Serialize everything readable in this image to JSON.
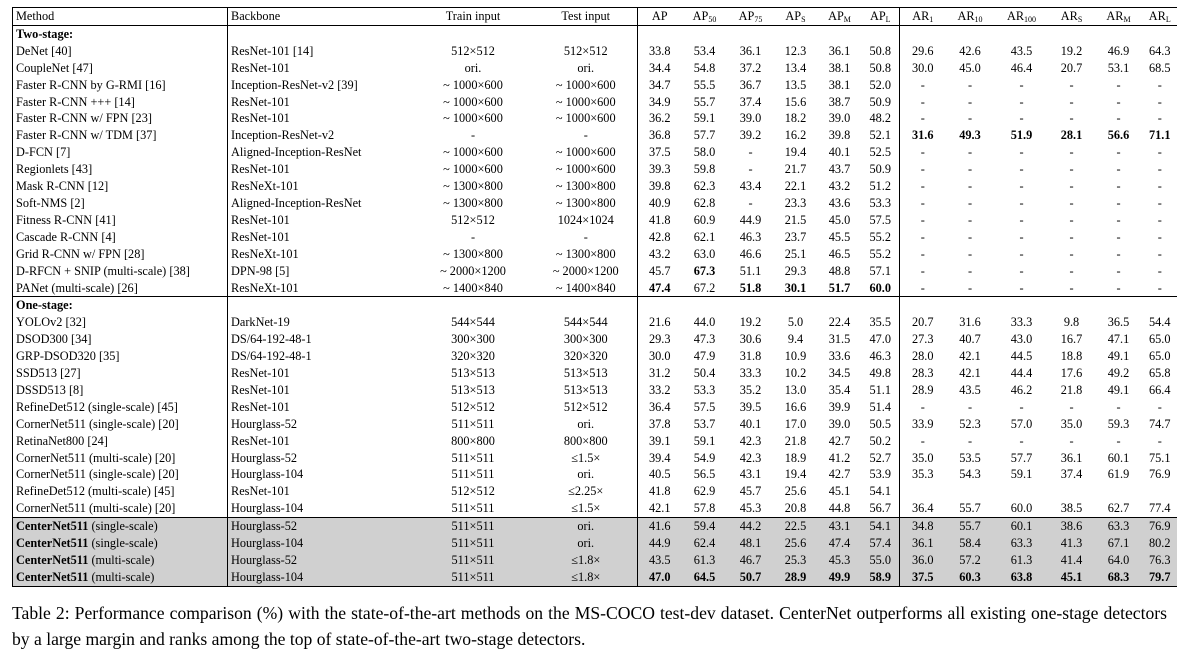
{
  "table": {
    "header": {
      "method": "Method",
      "backbone": "Backbone",
      "train_input": "Train input",
      "test_input": "Test input",
      "metrics": [
        {
          "base": "AP",
          "sub": ""
        },
        {
          "base": "AP",
          "sub": "50"
        },
        {
          "base": "AP",
          "sub": "75"
        },
        {
          "base": "AP",
          "sub": "S"
        },
        {
          "base": "AP",
          "sub": "M"
        },
        {
          "base": "AP",
          "sub": "L"
        },
        {
          "base": "AR",
          "sub": "1"
        },
        {
          "base": "AR",
          "sub": "10"
        },
        {
          "base": "AR",
          "sub": "100"
        },
        {
          "base": "AR",
          "sub": "S"
        },
        {
          "base": "AR",
          "sub": "M"
        },
        {
          "base": "AR",
          "sub": "L"
        }
      ]
    },
    "sections": [
      {
        "title": "Two-stage:",
        "rows": [
          {
            "method": "DeNet [40]",
            "backbone": "ResNet-101 [14]",
            "train": "512×512",
            "test": "512×512",
            "ap": [
              "33.8",
              "53.4",
              "36.1",
              "12.3",
              "36.1",
              "50.8"
            ],
            "ar": [
              "29.6",
              "42.6",
              "43.5",
              "19.2",
              "46.9",
              "64.3"
            ]
          },
          {
            "method": "CoupleNet [47]",
            "backbone": "ResNet-101",
            "train": "ori.",
            "test": "ori.",
            "ap": [
              "34.4",
              "54.8",
              "37.2",
              "13.4",
              "38.1",
              "50.8"
            ],
            "ar": [
              "30.0",
              "45.0",
              "46.4",
              "20.7",
              "53.1",
              "68.5"
            ]
          },
          {
            "method": "Faster R-CNN by G-RMI [16]",
            "backbone": "Inception-ResNet-v2 [39]",
            "train": "~ 1000×600",
            "test": "~ 1000×600",
            "ap": [
              "34.7",
              "55.5",
              "36.7",
              "13.5",
              "38.1",
              "52.0"
            ],
            "ar": [
              "-",
              "-",
              "-",
              "-",
              "-",
              "-"
            ]
          },
          {
            "method": "Faster R-CNN +++ [14]",
            "backbone": "ResNet-101",
            "train": "~ 1000×600",
            "test": "~ 1000×600",
            "ap": [
              "34.9",
              "55.7",
              "37.4",
              "15.6",
              "38.7",
              "50.9"
            ],
            "ar": [
              "-",
              "-",
              "-",
              "-",
              "-",
              "-"
            ]
          },
          {
            "method": "Faster R-CNN w/ FPN [23]",
            "backbone": "ResNet-101",
            "train": "~ 1000×600",
            "test": "~ 1000×600",
            "ap": [
              "36.2",
              "59.1",
              "39.0",
              "18.2",
              "39.0",
              "48.2"
            ],
            "ar": [
              "-",
              "-",
              "-",
              "-",
              "-",
              "-"
            ]
          },
          {
            "method": "Faster R-CNN w/ TDM [37]",
            "backbone": "Inception-ResNet-v2",
            "train": "-",
            "test": "-",
            "ap": [
              "36.8",
              "57.7",
              "39.2",
              "16.2",
              "39.8",
              "52.1"
            ],
            "ar": [
              "31.6",
              "49.3",
              "51.9",
              "28.1",
              "56.6",
              "71.1"
            ],
            "bold_ar": [
              0,
              1,
              2,
              3,
              4,
              5
            ]
          },
          {
            "method": "D-FCN [7]",
            "backbone": "Aligned-Inception-ResNet",
            "train": "~ 1000×600",
            "test": "~ 1000×600",
            "ap": [
              "37.5",
              "58.0",
              "-",
              "19.4",
              "40.1",
              "52.5"
            ],
            "ar": [
              "-",
              "-",
              "-",
              "-",
              "-",
              "-"
            ]
          },
          {
            "method": "Regionlets [43]",
            "backbone": "ResNet-101",
            "train": "~ 1000×600",
            "test": "~ 1000×600",
            "ap": [
              "39.3",
              "59.8",
              "-",
              "21.7",
              "43.7",
              "50.9"
            ],
            "ar": [
              "-",
              "-",
              "-",
              "-",
              "-",
              "-"
            ]
          },
          {
            "method": "Mask R-CNN [12]",
            "backbone": "ResNeXt-101",
            "train": "~ 1300×800",
            "test": "~ 1300×800",
            "ap": [
              "39.8",
              "62.3",
              "43.4",
              "22.1",
              "43.2",
              "51.2"
            ],
            "ar": [
              "-",
              "-",
              "-",
              "-",
              "-",
              "-"
            ]
          },
          {
            "method": "Soft-NMS [2]",
            "backbone": "Aligned-Inception-ResNet",
            "train": "~ 1300×800",
            "test": "~ 1300×800",
            "ap": [
              "40.9",
              "62.8",
              "-",
              "23.3",
              "43.6",
              "53.3"
            ],
            "ar": [
              "-",
              "-",
              "-",
              "-",
              "-",
              "-"
            ]
          },
          {
            "method": "Fitness R-CNN [41]",
            "backbone": "ResNet-101",
            "train": "512×512",
            "test": "1024×1024",
            "ap": [
              "41.8",
              "60.9",
              "44.9",
              "21.5",
              "45.0",
              "57.5"
            ],
            "ar": [
              "-",
              "-",
              "-",
              "-",
              "-",
              "-"
            ]
          },
          {
            "method": "Cascade R-CNN [4]",
            "backbone": "ResNet-101",
            "train": "-",
            "test": "-",
            "ap": [
              "42.8",
              "62.1",
              "46.3",
              "23.7",
              "45.5",
              "55.2"
            ],
            "ar": [
              "-",
              "-",
              "-",
              "-",
              "-",
              "-"
            ]
          },
          {
            "method": "Grid R-CNN w/ FPN [28]",
            "backbone": "ResNeXt-101",
            "train": "~ 1300×800",
            "test": "~ 1300×800",
            "ap": [
              "43.2",
              "63.0",
              "46.6",
              "25.1",
              "46.5",
              "55.2"
            ],
            "ar": [
              "-",
              "-",
              "-",
              "-",
              "-",
              "-"
            ]
          },
          {
            "method": "D-RFCN + SNIP (multi-scale) [38]",
            "backbone": "DPN-98 [5]",
            "train": "~ 2000×1200",
            "test": "~ 2000×1200",
            "ap": [
              "45.7",
              "67.3",
              "51.1",
              "29.3",
              "48.8",
              "57.1"
            ],
            "ar": [
              "-",
              "-",
              "-",
              "-",
              "-",
              "-"
            ],
            "bold_ap": [
              1
            ]
          },
          {
            "method": "PANet (multi-scale) [26]",
            "backbone": "ResNeXt-101",
            "train": "~ 1400×840",
            "test": "~ 1400×840",
            "ap": [
              "47.4",
              "67.2",
              "51.8",
              "30.1",
              "51.7",
              "60.0"
            ],
            "ar": [
              "-",
              "-",
              "-",
              "-",
              "-",
              "-"
            ],
            "bold_ap": [
              0,
              2,
              3,
              4,
              5
            ]
          }
        ]
      },
      {
        "title": "One-stage:",
        "rows": [
          {
            "method": "YOLOv2 [32]",
            "backbone": "DarkNet-19",
            "train": "544×544",
            "test": "544×544",
            "ap": [
              "21.6",
              "44.0",
              "19.2",
              "5.0",
              "22.4",
              "35.5"
            ],
            "ar": [
              "20.7",
              "31.6",
              "33.3",
              "9.8",
              "36.5",
              "54.4"
            ]
          },
          {
            "method": "DSOD300 [34]",
            "backbone": "DS/64-192-48-1",
            "train": "300×300",
            "test": "300×300",
            "ap": [
              "29.3",
              "47.3",
              "30.6",
              "9.4",
              "31.5",
              "47.0"
            ],
            "ar": [
              "27.3",
              "40.7",
              "43.0",
              "16.7",
              "47.1",
              "65.0"
            ]
          },
          {
            "method": "GRP-DSOD320 [35]",
            "backbone": "DS/64-192-48-1",
            "train": "320×320",
            "test": "320×320",
            "ap": [
              "30.0",
              "47.9",
              "31.8",
              "10.9",
              "33.6",
              "46.3"
            ],
            "ar": [
              "28.0",
              "42.1",
              "44.5",
              "18.8",
              "49.1",
              "65.0"
            ]
          },
          {
            "method": "SSD513 [27]",
            "backbone": "ResNet-101",
            "train": "513×513",
            "test": "513×513",
            "ap": [
              "31.2",
              "50.4",
              "33.3",
              "10.2",
              "34.5",
              "49.8"
            ],
            "ar": [
              "28.3",
              "42.1",
              "44.4",
              "17.6",
              "49.2",
              "65.8"
            ]
          },
          {
            "method": "DSSD513 [8]",
            "backbone": "ResNet-101",
            "train": "513×513",
            "test": "513×513",
            "ap": [
              "33.2",
              "53.3",
              "35.2",
              "13.0",
              "35.4",
              "51.1"
            ],
            "ar": [
              "28.9",
              "43.5",
              "46.2",
              "21.8",
              "49.1",
              "66.4"
            ]
          },
          {
            "method": "RefineDet512 (single-scale) [45]",
            "backbone": "ResNet-101",
            "train": "512×512",
            "test": "512×512",
            "ap": [
              "36.4",
              "57.5",
              "39.5",
              "16.6",
              "39.9",
              "51.4"
            ],
            "ar": [
              "-",
              "-",
              "-",
              "-",
              "-",
              "-"
            ]
          },
          {
            "method": "CornerNet511 (single-scale) [20]",
            "backbone": "Hourglass-52",
            "train": "511×511",
            "test": "ori.",
            "ap": [
              "37.8",
              "53.7",
              "40.1",
              "17.0",
              "39.0",
              "50.5"
            ],
            "ar": [
              "33.9",
              "52.3",
              "57.0",
              "35.0",
              "59.3",
              "74.7"
            ]
          },
          {
            "method": "RetinaNet800 [24]",
            "backbone": "ResNet-101",
            "train": "800×800",
            "test": "800×800",
            "ap": [
              "39.1",
              "59.1",
              "42.3",
              "21.8",
              "42.7",
              "50.2"
            ],
            "ar": [
              "-",
              "-",
              "-",
              "-",
              "-",
              "-"
            ]
          },
          {
            "method": "CornerNet511 (multi-scale) [20]",
            "backbone": "Hourglass-52",
            "train": "511×511",
            "test": "≤1.5×",
            "ap": [
              "39.4",
              "54.9",
              "42.3",
              "18.9",
              "41.2",
              "52.7"
            ],
            "ar": [
              "35.0",
              "53.5",
              "57.7",
              "36.1",
              "60.1",
              "75.1"
            ]
          },
          {
            "method": "CornerNet511 (single-scale) [20]",
            "backbone": "Hourglass-104",
            "train": "511×511",
            "test": "ori.",
            "ap": [
              "40.5",
              "56.5",
              "43.1",
              "19.4",
              "42.7",
              "53.9"
            ],
            "ar": [
              "35.3",
              "54.3",
              "59.1",
              "37.4",
              "61.9",
              "76.9"
            ]
          },
          {
            "method": "RefineDet512 (multi-scale) [45]",
            "backbone": "ResNet-101",
            "train": "512×512",
            "test": "≤2.25×",
            "ap": [
              "41.8",
              "62.9",
              "45.7",
              "25.6",
              "45.1",
              "54.1"
            ],
            "ar": [
              "",
              "",
              "",
              "",
              "",
              ""
            ]
          },
          {
            "method": "CornerNet511 (multi-scale) [20]",
            "backbone": "Hourglass-104",
            "train": "511×511",
            "test": "≤1.5×",
            "ap": [
              "42.1",
              "57.8",
              "45.3",
              "20.8",
              "44.8",
              "56.7"
            ],
            "ar": [
              "36.4",
              "55.7",
              "60.0",
              "38.5",
              "62.7",
              "77.4"
            ]
          }
        ]
      }
    ],
    "ours": [
      {
        "method_bold": "CenterNet511",
        "method_rest": " (single-scale)",
        "backbone": "Hourglass-52",
        "train": "511×511",
        "test": "ori.",
        "ap": [
          "41.6",
          "59.4",
          "44.2",
          "22.5",
          "43.1",
          "54.1"
        ],
        "ar": [
          "34.8",
          "55.7",
          "60.1",
          "38.6",
          "63.3",
          "76.9"
        ]
      },
      {
        "method_bold": "CenterNet511",
        "method_rest": " (single-scale)",
        "backbone": "Hourglass-104",
        "train": "511×511",
        "test": "ori.",
        "ap": [
          "44.9",
          "62.4",
          "48.1",
          "25.6",
          "47.4",
          "57.4"
        ],
        "ar": [
          "36.1",
          "58.4",
          "63.3",
          "41.3",
          "67.1",
          "80.2"
        ]
      },
      {
        "method_bold": "CenterNet511",
        "method_rest": " (multi-scale)",
        "backbone": "Hourglass-52",
        "train": "511×511",
        "test": "≤1.8×",
        "ap": [
          "43.5",
          "61.3",
          "46.7",
          "25.3",
          "45.3",
          "55.0"
        ],
        "ar": [
          "36.0",
          "57.2",
          "61.3",
          "41.4",
          "64.0",
          "76.3"
        ]
      },
      {
        "method_bold": "CenterNet511",
        "method_rest": " (multi-scale)",
        "backbone": "Hourglass-104",
        "train": "511×511",
        "test": "≤1.8×",
        "ap": [
          "47.0",
          "64.5",
          "50.7",
          "28.9",
          "49.9",
          "58.9"
        ],
        "ar": [
          "37.5",
          "60.3",
          "63.8",
          "45.1",
          "68.3",
          "79.7"
        ],
        "bold_ap": [
          0,
          1,
          2,
          3,
          4,
          5
        ],
        "bold_ar": [
          0,
          1,
          2,
          3,
          4,
          5
        ]
      }
    ]
  },
  "caption": {
    "label": "Table 2:",
    "text": " Performance comparison (%) with the state-of-the-art methods on the MS-COCO test-dev dataset. CenterNet outperforms all existing one-stage detectors by a large margin and ranks among the top of state-of-the-art two-stage detectors."
  }
}
